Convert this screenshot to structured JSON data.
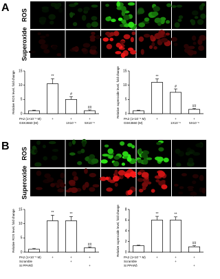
{
  "panels": [
    {
      "label": "A",
      "rows": [
        "ROS",
        "Superoxide"
      ]
    },
    {
      "label": "B",
      "rows": [
        "ROS",
        "Superoxide"
      ]
    }
  ],
  "chart_data": [
    {
      "type": "bar",
      "y_label": "Relative ROS level, fold change",
      "color": "#ffffff",
      "values": [
        1,
        10.5,
        5,
        1
      ],
      "errors": [
        0.2,
        1.8,
        1,
        0.3
      ],
      "annotations": [
        null,
        "**",
        "#",
        "##"
      ],
      "ylim": [
        0,
        15
      ],
      "yticks": [
        0,
        5,
        10,
        15
      ],
      "treatments": [
        {
          "name": "PA2 (1×10⁻⁵ M)",
          "marks": [
            null,
            "+",
            "+",
            "+"
          ]
        },
        {
          "name": "GSK3660 (M)",
          "marks": [
            null,
            null,
            "1X10⁻⁶",
            "5X10⁻⁶"
          ]
        }
      ]
    },
    {
      "type": "bar",
      "y_label": "Relative superoxide level, fold change",
      "color": "#ffffff",
      "values": [
        1,
        11,
        7.5,
        1.5
      ],
      "errors": [
        0.2,
        1.2,
        1.2,
        0.3
      ],
      "annotations": [
        null,
        "**",
        "#",
        "##"
      ],
      "ylim": [
        0,
        15
      ],
      "yticks": [
        0,
        5,
        10,
        15
      ],
      "treatments": [
        {
          "name": "PA2 (1×10⁻⁵ M)",
          "marks": [
            null,
            "+",
            "+",
            "+"
          ]
        },
        {
          "name": "GSK3660 (M)",
          "marks": [
            null,
            null,
            "1X10⁻⁶",
            "5X10⁻⁶"
          ]
        }
      ]
    },
    {
      "type": "bar",
      "y_label": "Relative ROS level, fold change",
      "color": "#ffffff",
      "values": [
        1,
        11,
        11,
        1.5
      ],
      "errors": [
        0.3,
        2,
        1.5,
        0.3
      ],
      "annotations": [
        null,
        "**",
        "**",
        "##"
      ],
      "ylim": [
        0,
        15
      ],
      "yticks": [
        0,
        5,
        10,
        15
      ],
      "treatments": [
        {
          "name": "PA2 (1×10⁻⁵ M)",
          "marks": [
            null,
            "+",
            "+",
            "+"
          ]
        },
        {
          "name": "Scramble",
          "marks": [
            null,
            null,
            "+",
            null
          ]
        },
        {
          "name": "Si PPARδ",
          "marks": [
            null,
            null,
            null,
            "+"
          ]
        }
      ]
    },
    {
      "type": "bar",
      "y_label": "Relative superoxide level, fold change",
      "color": "#ffffff",
      "values": [
        1.2,
        6,
        6,
        1
      ],
      "errors": [
        0.1,
        0.7,
        0.6,
        0.2
      ],
      "annotations": [
        null,
        "**",
        "**",
        "##"
      ],
      "ylim": [
        0,
        8
      ],
      "yticks": [
        0,
        2,
        4,
        6,
        8
      ],
      "treatments": [
        {
          "name": "PA2 (1×10⁻⁵ M)",
          "marks": [
            null,
            "+",
            "+",
            "+"
          ]
        },
        {
          "name": "Scramble",
          "marks": [
            null,
            null,
            "+",
            null
          ]
        },
        {
          "name": "Si PPARδ",
          "marks": [
            null,
            null,
            null,
            "+"
          ]
        }
      ]
    }
  ]
}
